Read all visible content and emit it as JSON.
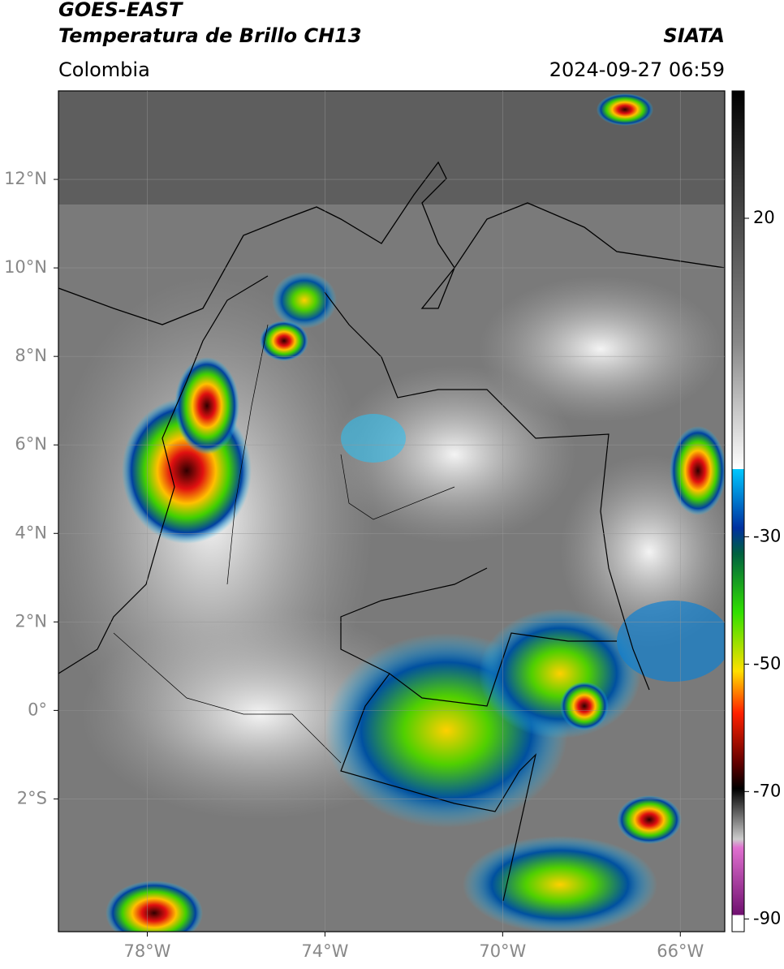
{
  "header": {
    "satellite": "GOES-EAST",
    "product": "Temperatura de Brillo CH13",
    "source": "SIATA",
    "region": "Colombia",
    "datetime": "2024-09-27 06:59"
  },
  "map": {
    "xlim": [
      -80,
      -65
    ],
    "ylim": [
      -5,
      14
    ],
    "xticks": [
      {
        "value": -78,
        "label": "78°W"
      },
      {
        "value": -74,
        "label": "74°W"
      },
      {
        "value": -70,
        "label": "70°W"
      },
      {
        "value": -66,
        "label": "66°W"
      }
    ],
    "yticks": [
      {
        "value": 12,
        "label": "12°N"
      },
      {
        "value": 10,
        "label": "10°N"
      },
      {
        "value": 8,
        "label": "8°N"
      },
      {
        "value": 6,
        "label": "6°N"
      },
      {
        "value": 4,
        "label": "4°N"
      },
      {
        "value": 2,
        "label": "2°N"
      },
      {
        "value": 0,
        "label": "0°"
      },
      {
        "value": -2,
        "label": "2°S"
      }
    ],
    "grid": true,
    "colorbar": {
      "lim": [
        -92,
        40
      ],
      "ticks": [
        20,
        -30,
        -50,
        -70,
        -90
      ]
    }
  }
}
